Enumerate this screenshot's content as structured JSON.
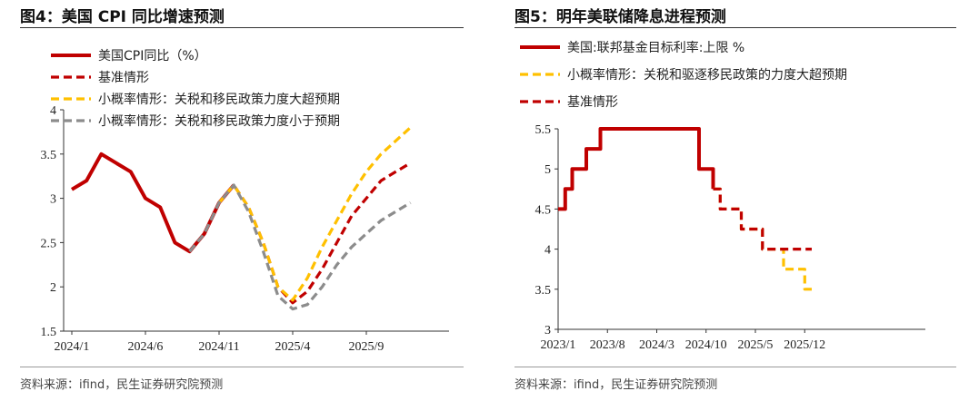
{
  "left": {
    "title": "图4：美国 CPI 同比增速预测",
    "source": "资料来源：ifind，民生证券研究院预测",
    "chart_data": {
      "type": "line",
      "x_ticks": [
        "2024/1",
        "2024/6",
        "2024/11",
        "2025/4",
        "2025/9"
      ],
      "y_ticks": [
        "1.5",
        "2",
        "2.5",
        "3",
        "3.5",
        "4"
      ],
      "ylim": [
        1.5,
        4
      ],
      "legend_position": "top-left",
      "series": [
        {
          "name": "美国CPI同比（%）",
          "color": "#c00000",
          "style": "solid",
          "x": [
            "2024/1",
            "2024/2",
            "2024/3",
            "2024/4",
            "2024/5",
            "2024/6",
            "2024/7",
            "2024/8",
            "2024/9",
            "2024/10",
            "2024/11",
            "2024/12"
          ],
          "values": [
            3.1,
            3.2,
            3.5,
            3.4,
            3.3,
            3.0,
            2.9,
            2.5,
            2.4,
            2.6,
            2.95,
            3.15
          ]
        },
        {
          "name": "基准情形",
          "color": "#c00000",
          "style": "dash",
          "x": [
            "2024/11",
            "2024/12",
            "2025/1",
            "2025/2",
            "2025/3",
            "2025/4",
            "2025/5",
            "2025/6",
            "2025/7",
            "2025/8",
            "2025/9",
            "2025/10",
            "2025/11",
            "2025/12"
          ],
          "values": [
            2.95,
            3.15,
            2.9,
            2.5,
            2.0,
            1.82,
            1.95,
            2.2,
            2.5,
            2.8,
            3.0,
            3.2,
            3.3,
            3.4
          ]
        },
        {
          "name": "小概率情形：关税和移民政策力度大超预期",
          "color": "#ffc000",
          "style": "dash",
          "x": [
            "2024/11",
            "2024/12",
            "2025/1",
            "2025/2",
            "2025/3",
            "2025/4",
            "2025/5",
            "2025/6",
            "2025/7",
            "2025/8",
            "2025/9",
            "2025/10",
            "2025/11",
            "2025/12"
          ],
          "values": [
            2.95,
            3.15,
            2.9,
            2.5,
            2.0,
            1.85,
            2.1,
            2.45,
            2.75,
            3.05,
            3.3,
            3.5,
            3.65,
            3.8
          ]
        },
        {
          "name": "小概率情形：关税和移民政策力度小于预期",
          "color": "#8c8c8c",
          "style": "dash",
          "x": [
            "2024/9",
            "2024/10",
            "2024/11",
            "2024/12",
            "2025/1",
            "2025/2",
            "2025/3",
            "2025/4",
            "2025/5",
            "2025/6",
            "2025/7",
            "2025/8",
            "2025/9",
            "2025/10",
            "2025/11",
            "2025/12"
          ],
          "values": [
            2.4,
            2.6,
            2.95,
            3.15,
            2.85,
            2.4,
            1.9,
            1.75,
            1.8,
            2.0,
            2.25,
            2.45,
            2.6,
            2.75,
            2.85,
            2.95
          ]
        }
      ]
    }
  },
  "right": {
    "title": "图5：明年美联储降息进程预测",
    "source": "资料来源：ifind，民生证券研究院预测",
    "chart_data": {
      "type": "line",
      "x_ticks": [
        "2023/1",
        "2023/8",
        "2024/3",
        "2024/10",
        "2025/5",
        "2025/12"
      ],
      "y_ticks": [
        "3",
        "3.5",
        "4",
        "4.5",
        "5",
        "5.5"
      ],
      "ylim": [
        3,
        5.5
      ],
      "legend_position": "top-left",
      "series": [
        {
          "name": "美国:联邦基金目标利率:上限 %",
          "color": "#c00000",
          "style": "solid",
          "step": true,
          "x": [
            "2023/1",
            "2023/2",
            "2023/3",
            "2023/5",
            "2023/7",
            "2024/9",
            "2024/11"
          ],
          "values": [
            4.5,
            4.75,
            5.0,
            5.25,
            5.5,
            5.0,
            4.75
          ]
        },
        {
          "name": "小概率情形：关税和驱逐移民政策的力度大超预期",
          "color": "#ffc000",
          "style": "dash",
          "step": true,
          "x": [
            "2024/11",
            "2024/12",
            "2025/3",
            "2025/6",
            "2025/9",
            "2025/12",
            "2026/1"
          ],
          "values": [
            4.75,
            4.5,
            4.25,
            4.0,
            3.75,
            3.5,
            3.5
          ]
        },
        {
          "name": "基准情形",
          "color": "#c00000",
          "style": "dash",
          "step": true,
          "x": [
            "2024/11",
            "2024/12",
            "2025/3",
            "2025/6",
            "2026/1"
          ],
          "values": [
            4.75,
            4.5,
            4.25,
            4.0,
            4.0
          ]
        }
      ]
    }
  }
}
